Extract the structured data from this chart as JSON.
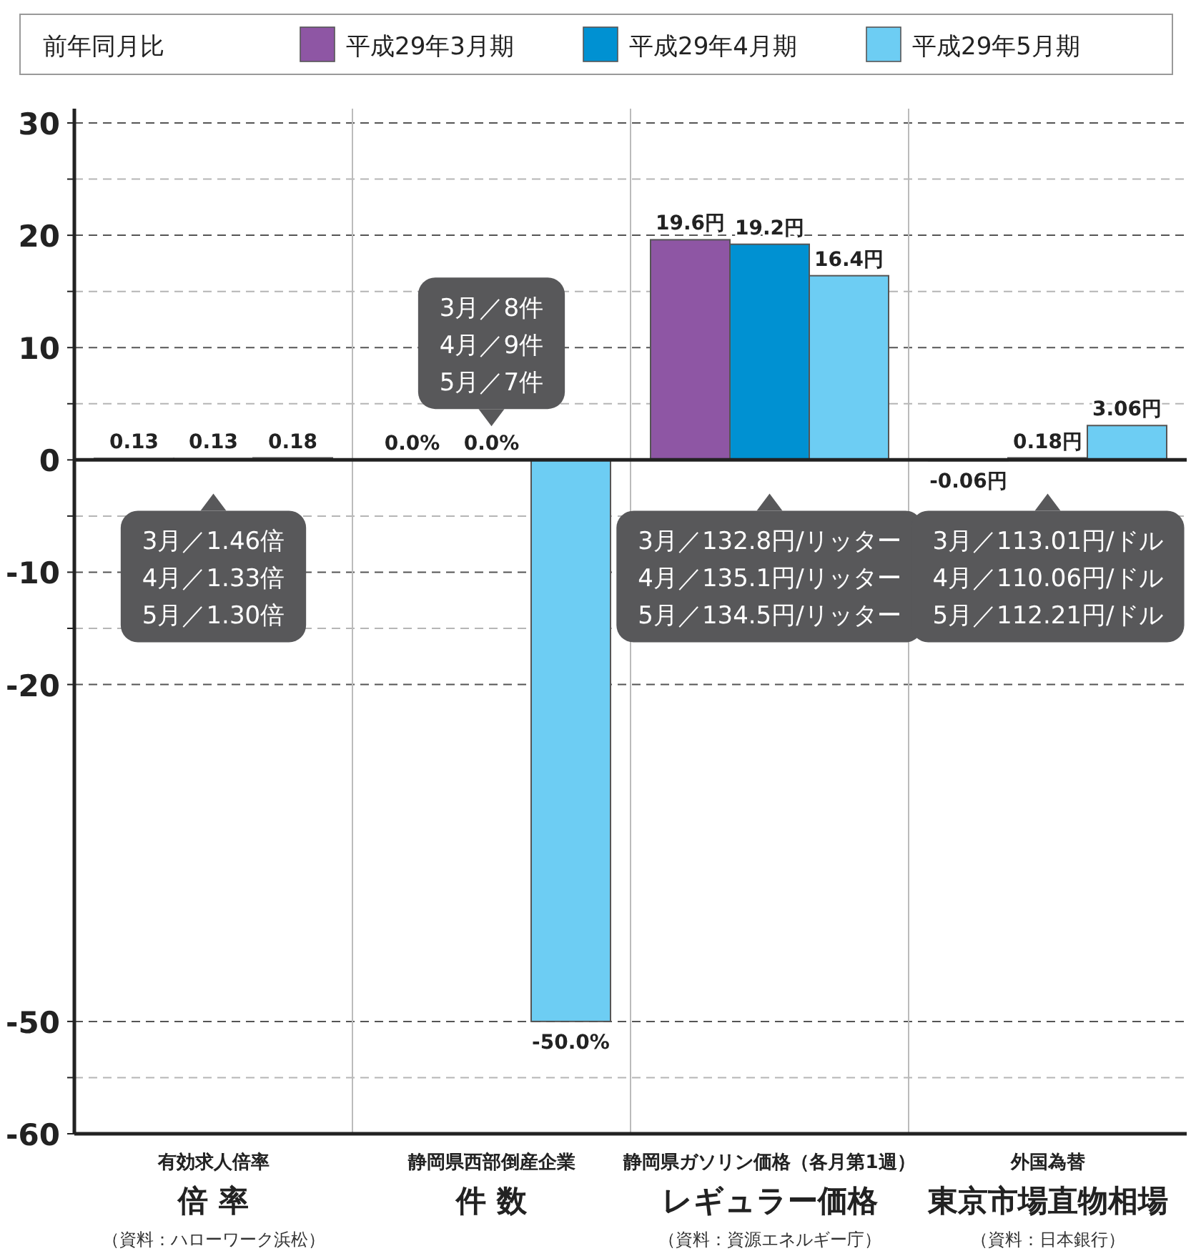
{
  "chart_data": {
    "type": "bar",
    "categories": [
      "倍 率",
      "件 数",
      "レギュラー価格",
      "東京市場直物相場"
    ],
    "series": [
      {
        "name": "平成29年3月期",
        "color": "#8e56a4",
        "values": [
          0.13,
          0,
          19.6,
          -0.06
        ],
        "value_labels": [
          "0.13",
          "0.0%",
          "19.6円",
          "-0.06円"
        ]
      },
      {
        "name": "平成29年4月期",
        "color": "#0091d2",
        "values": [
          0.13,
          0,
          19.2,
          0.18
        ],
        "value_labels": [
          "0.13",
          "0.0%",
          "19.2円",
          "0.18円"
        ]
      },
      {
        "name": "平成29年5月期",
        "color": "#6dcdf3",
        "values": [
          0.18,
          -50,
          16.4,
          3.06
        ],
        "value_labels": [
          "0.18",
          "-50.0%",
          "16.4円",
          "3.06円"
        ]
      }
    ],
    "legend_title": "前年同月比",
    "legend": "top",
    "ylim": [
      -60,
      30
    ],
    "yticks": [
      30,
      {
        "value": 25,
        "label": null
      },
      20,
      {
        "value": 15,
        "label": null
      },
      10,
      {
        "value": 5,
        "label": null
      },
      0,
      {
        "value": -5,
        "label": null
      },
      -10,
      {
        "value": -15,
        "label": null
      },
      -20,
      -50,
      {
        "value": -55,
        "label": null
      },
      -60
    ],
    "grid": "y",
    "annotations": [
      "3月／1.46倍\n4月／1.33倍\n5月／1.30倍",
      "3月／8件\n4月／9件\n5月／7件",
      "3月／132.8円/リッター\n4月／135.1円/リッター\n5月／134.5円/リッター",
      "3月／113.01円/ドル\n4月／110.06円/ドル\n5月／112.21円/ドル",
      "有効求人倍率",
      "静岡県西部倒産企業",
      "静岡県ガソリン価格（各月第1週）",
      "外国為替",
      "（資料：ハローワーク浜松）",
      null,
      "（資料：資源エネルギー庁）",
      "（資料：日本銀行）"
    ]
  }
}
